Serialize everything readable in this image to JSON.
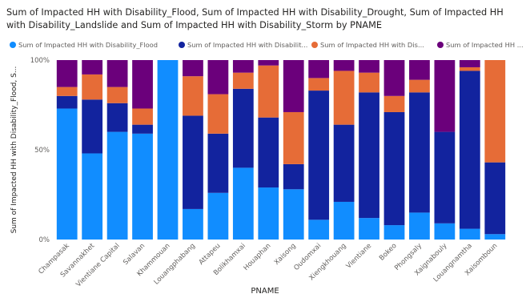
{
  "title": "Sum of Impacted HH with Disability_Flood, Sum of Impacted HH with Disability_Drought, Sum of Impacted HH with Disability_Landslide and Sum of Impacted HH with Disability_Storm by PNAME",
  "legend": [
    {
      "label": "Sum of Impacted HH with Disability_Flood",
      "color": "#118DFF"
    },
    {
      "label": "Sum of Impacted HH with Disabilit...",
      "color": "#12239E"
    },
    {
      "label": "Sum of Impacted HH with Dis...",
      "color": "#E66C37"
    },
    {
      "label": "Sum of Impacted HH ...",
      "color": "#6B007B"
    }
  ],
  "chart_data": {
    "type": "bar",
    "stacked": "100%",
    "title": "Sum of Impacted HH with Disability_Flood, Sum of Impacted HH with Disability_Drought, Sum of Impacted HH with Disability_Landslide and Sum of Impacted HH with Disability_Storm by PNAME",
    "xlabel": "PNAME",
    "ylabel": "Sum of Impacted HH with Disability_Flood, S...",
    "ylim": [
      0,
      100
    ],
    "y_ticks": [
      "0%",
      "50%",
      "100%"
    ],
    "grid": false,
    "legend_position": "top-left",
    "categories": [
      "Champasak",
      "Savannakhet",
      "Vientiane Capital",
      "Salavan",
      "Khammouan",
      "Louangphabang",
      "Attapeu",
      "Bolikhamxai",
      "Houaphan",
      "Xaisong",
      "Oudomxai",
      "Xiengkhouang",
      "Vientiane",
      "Bokeo",
      "Phongsaly",
      "Xaignabouly",
      "Louangnamtha",
      "Xaisomboun"
    ],
    "series": [
      {
        "name": "Sum of Impacted HH with Disability_Flood",
        "color": "#118DFF",
        "values": [
          73,
          48,
          60,
          59,
          100,
          17,
          26,
          40,
          29,
          28,
          11,
          21,
          12,
          8,
          15,
          9,
          6,
          3
        ]
      },
      {
        "name": "Sum of Impacted HH with Disability_Drought",
        "color": "#12239E",
        "values": [
          7,
          30,
          16,
          5,
          0,
          52,
          33,
          44,
          39,
          14,
          72,
          43,
          70,
          63,
          67,
          51,
          88,
          40
        ]
      },
      {
        "name": "Sum of Impacted HH with Disability_Landslide",
        "color": "#E66C37",
        "values": [
          5,
          14,
          9,
          9,
          0,
          22,
          22,
          9,
          29,
          29,
          7,
          30,
          11,
          9,
          7,
          0,
          2,
          57
        ]
      },
      {
        "name": "Sum of Impacted HH with Disability_Storm",
        "color": "#6B007B",
        "values": [
          15,
          8,
          15,
          27,
          0,
          9,
          19,
          7,
          3,
          29,
          10,
          6,
          7,
          20,
          11,
          40,
          4,
          0
        ]
      }
    ]
  }
}
